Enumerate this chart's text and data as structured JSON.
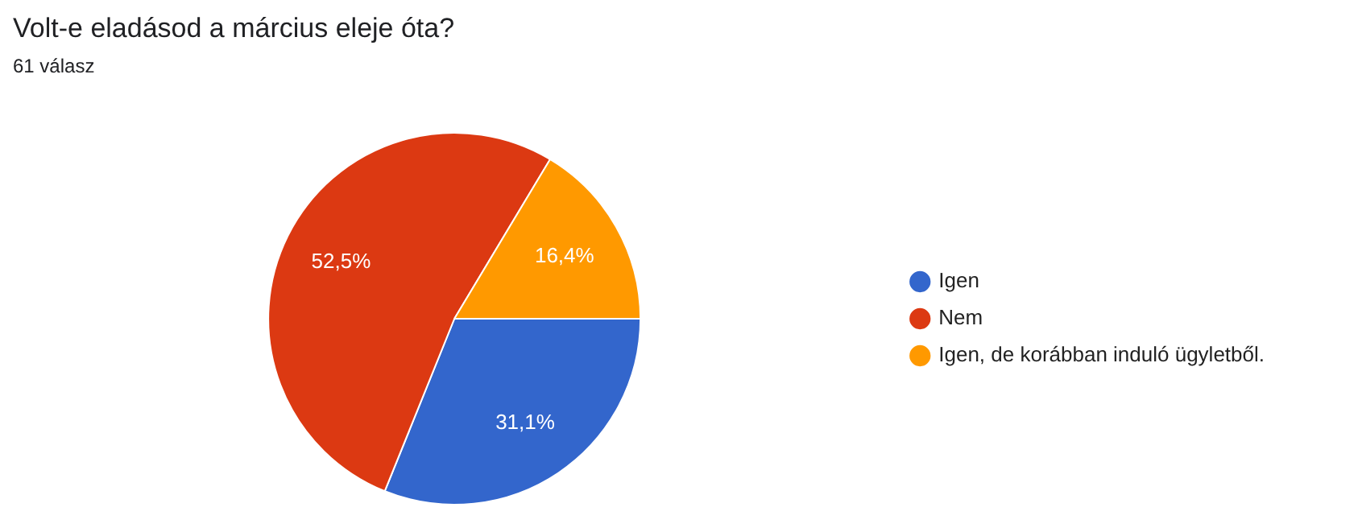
{
  "chart_data": {
    "type": "pie",
    "title": "Volt-e eladásod a március eleje óta?",
    "subtitle": "61 válasz",
    "categories": [
      "Igen",
      "Nem",
      "Igen, de korábban induló ügyletből."
    ],
    "values": [
      31.1,
      52.5,
      16.4
    ],
    "colors": [
      "#3366cc",
      "#dc3912",
      "#ff9900"
    ],
    "value_labels": [
      "31,1%",
      "52,5%",
      "16,4%"
    ],
    "legend": "right"
  }
}
